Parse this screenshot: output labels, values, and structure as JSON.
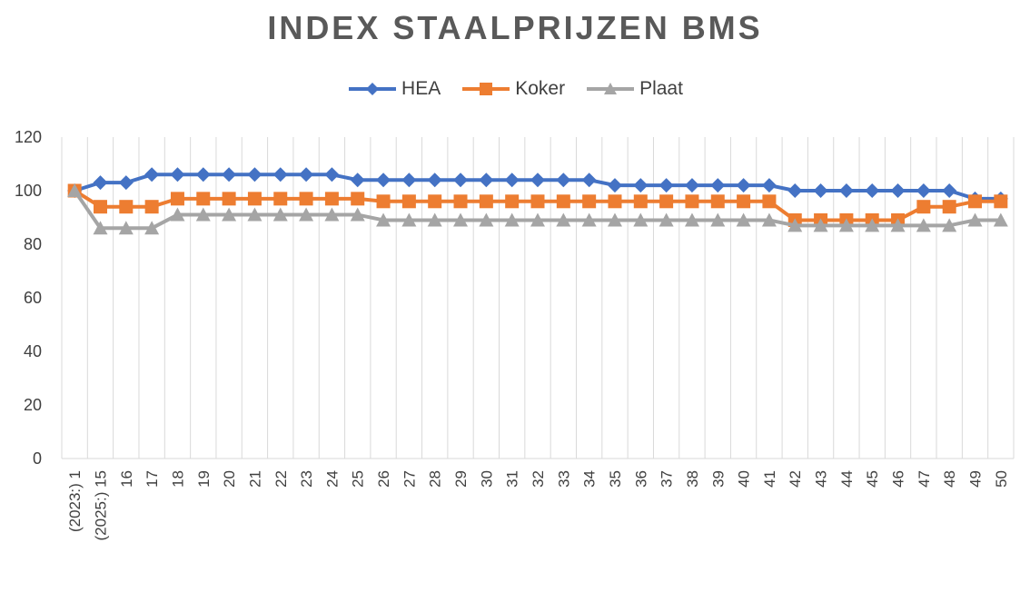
{
  "chart_data": {
    "type": "line",
    "title": "INDEX STAALPRIJZEN BMS",
    "xlabel": "",
    "ylabel": "",
    "ylim": [
      0,
      120
    ],
    "yticks": [
      0,
      20,
      40,
      60,
      80,
      100,
      120
    ],
    "grid": "vertical",
    "legend": "top",
    "categories": [
      "(2023:) 1",
      "(2025:) 15",
      "16",
      "17",
      "18",
      "19",
      "20",
      "21",
      "22",
      "23",
      "24",
      "25",
      "26",
      "27",
      "28",
      "29",
      "30",
      "31",
      "32",
      "33",
      "34",
      "35",
      "36",
      "37",
      "38",
      "39",
      "40",
      "41",
      "42",
      "43",
      "44",
      "45",
      "46",
      "47",
      "48",
      "49",
      "50"
    ],
    "series": [
      {
        "name": "HEA",
        "color": "#4472C4",
        "marker": "diamond",
        "values": [
          100,
          103,
          103,
          106,
          106,
          106,
          106,
          106,
          106,
          106,
          106,
          104,
          104,
          104,
          104,
          104,
          104,
          104,
          104,
          104,
          104,
          102,
          102,
          102,
          102,
          102,
          102,
          102,
          100,
          100,
          100,
          100,
          100,
          100,
          100,
          97,
          97
        ]
      },
      {
        "name": "Koker",
        "color": "#ED7D31",
        "marker": "square",
        "values": [
          100,
          94,
          94,
          94,
          97,
          97,
          97,
          97,
          97,
          97,
          97,
          97,
          96,
          96,
          96,
          96,
          96,
          96,
          96,
          96,
          96,
          96,
          96,
          96,
          96,
          96,
          96,
          96,
          89,
          89,
          89,
          89,
          89,
          94,
          94,
          96,
          96
        ]
      },
      {
        "name": "Plaat",
        "color": "#A5A5A5",
        "marker": "triangle",
        "values": [
          100,
          86,
          86,
          86,
          91,
          91,
          91,
          91,
          91,
          91,
          91,
          91,
          89,
          89,
          89,
          89,
          89,
          89,
          89,
          89,
          89,
          89,
          89,
          89,
          89,
          89,
          89,
          89,
          87,
          87,
          87,
          87,
          87,
          87,
          87,
          89,
          89
        ]
      }
    ]
  }
}
